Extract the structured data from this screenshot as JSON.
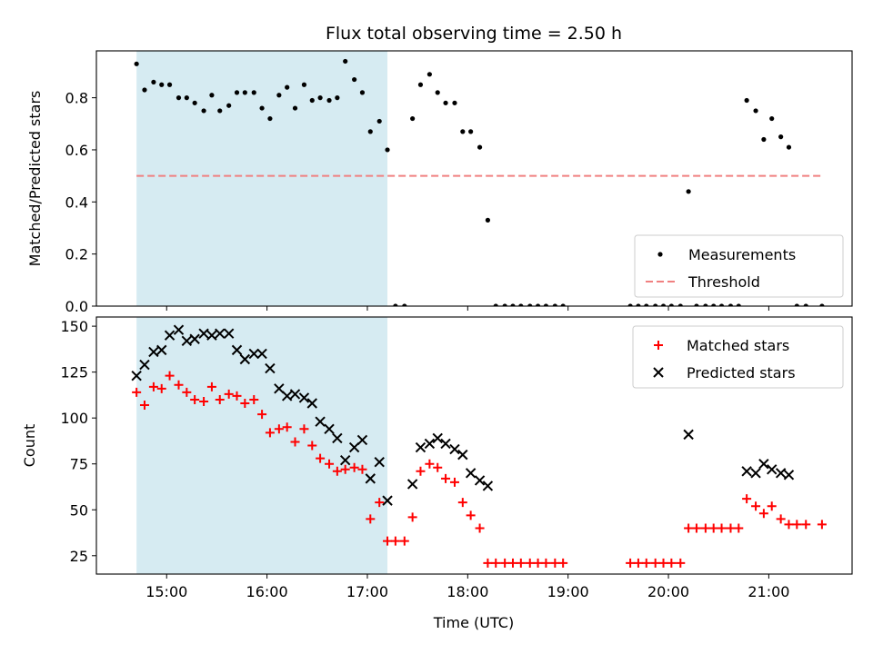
{
  "chart_data": {
    "title": "Flux total observing time = 2.50 h",
    "xlabel": "Time (UTC)",
    "x_ticks": [
      "15:00",
      "16:00",
      "17:00",
      "18:00",
      "19:00",
      "20:00",
      "21:00"
    ],
    "x_tick_hours": [
      15,
      16,
      17,
      18,
      19,
      20,
      21
    ],
    "xlim_hours": [
      14.3,
      21.83
    ],
    "shaded_interval_hours": [
      14.7,
      17.2
    ],
    "shade_color": "#add8e6",
    "panels": [
      {
        "type": "scatter",
        "ylabel": "Matched/Predicted stars",
        "ylim": [
          0,
          0.98
        ],
        "y_ticks": [
          0,
          0.2,
          0.4,
          0.6,
          0.8
        ],
        "y_tick_labels": [
          "0.0",
          "0.2",
          "0.4",
          "0.6",
          "0.8"
        ],
        "legend_position": "lower-right",
        "threshold": {
          "name": "Threshold",
          "value": 0.5,
          "x_range_hours": [
            14.7,
            21.53
          ],
          "color": "#f08080"
        },
        "series": [
          {
            "name": "Measurements",
            "color": "#000000",
            "marker": "dot",
            "x": [
              14.7,
              14.78,
              14.87,
              14.95,
              15.03,
              15.12,
              15.2,
              15.28,
              15.37,
              15.45,
              15.53,
              15.62,
              15.7,
              15.78,
              15.87,
              15.95,
              16.03,
              16.12,
              16.2,
              16.28,
              16.37,
              16.45,
              16.53,
              16.62,
              16.7,
              16.78,
              16.87,
              16.95,
              17.03,
              17.12,
              17.2,
              17.28,
              17.37,
              17.45,
              17.53,
              17.62,
              17.7,
              17.78,
              17.87,
              17.95,
              18.03,
              18.12,
              18.2,
              18.28,
              18.37,
              18.45,
              18.53,
              18.62,
              18.7,
              18.78,
              18.87,
              18.95,
              19.62,
              19.7,
              19.78,
              19.87,
              19.95,
              20.03,
              20.12,
              20.2,
              20.28,
              20.37,
              20.45,
              20.53,
              20.62,
              20.7,
              20.78,
              20.87,
              20.95,
              21.03,
              21.12,
              21.2,
              21.28,
              21.37,
              21.53
            ],
            "y": [
              0.93,
              0.83,
              0.86,
              0.85,
              0.85,
              0.8,
              0.8,
              0.78,
              0.75,
              0.81,
              0.75,
              0.77,
              0.82,
              0.82,
              0.82,
              0.76,
              0.72,
              0.81,
              0.84,
              0.76,
              0.85,
              0.79,
              0.8,
              0.79,
              0.8,
              0.94,
              0.87,
              0.82,
              0.67,
              0.71,
              0.6,
              0.0,
              0.0,
              0.72,
              0.85,
              0.89,
              0.82,
              0.78,
              0.78,
              0.67,
              0.67,
              0.61,
              0.33,
              0.0,
              0.0,
              0.0,
              0.0,
              0.0,
              0.0,
              0.0,
              0.0,
              0.0,
              0.0,
              0.0,
              0.0,
              0.0,
              0.0,
              0.0,
              0.0,
              0.44,
              0.0,
              0.0,
              0.0,
              0.0,
              0.0,
              0.0,
              0.79,
              0.75,
              0.64,
              0.72,
              0.65,
              0.61,
              0.0,
              0.0,
              0.0
            ]
          }
        ]
      },
      {
        "type": "scatter",
        "ylabel": "Count",
        "ylim": [
          15,
          155
        ],
        "y_ticks": [
          25,
          50,
          75,
          100,
          125,
          150
        ],
        "y_tick_labels": [
          "25",
          "50",
          "75",
          "100",
          "125",
          "150"
        ],
        "legend_position": "upper-right",
        "series": [
          {
            "name": "Matched stars",
            "color": "#ff0000",
            "marker": "plus",
            "x": [
              14.7,
              14.78,
              14.87,
              14.95,
              15.03,
              15.12,
              15.2,
              15.28,
              15.37,
              15.45,
              15.53,
              15.62,
              15.7,
              15.78,
              15.87,
              15.95,
              16.03,
              16.12,
              16.2,
              16.28,
              16.37,
              16.45,
              16.53,
              16.62,
              16.7,
              16.78,
              16.87,
              16.95,
              17.03,
              17.12,
              17.2,
              17.28,
              17.37,
              17.45,
              17.53,
              17.62,
              17.7,
              17.78,
              17.87,
              17.95,
              18.03,
              18.12,
              18.2,
              18.28,
              18.37,
              18.45,
              18.53,
              18.62,
              18.7,
              18.78,
              18.87,
              18.95,
              19.62,
              19.7,
              19.78,
              19.87,
              19.95,
              20.03,
              20.12,
              20.2,
              20.28,
              20.37,
              20.45,
              20.53,
              20.62,
              20.7,
              20.78,
              20.87,
              20.95,
              21.03,
              21.12,
              21.2,
              21.28,
              21.37,
              21.53
            ],
            "y": [
              114,
              107,
              117,
              116,
              123,
              118,
              114,
              110,
              109,
              117,
              110,
              113,
              112,
              108,
              110,
              102,
              92,
              94,
              95,
              87,
              94,
              85,
              78,
              75,
              71,
              72,
              73,
              72,
              45,
              54,
              33,
              33,
              33,
              46,
              71,
              75,
              73,
              67,
              65,
              54,
              47,
              40,
              21,
              21,
              21,
              21,
              21,
              21,
              21,
              21,
              21,
              21,
              21,
              21,
              21,
              21,
              21,
              21,
              21,
              40,
              40,
              40,
              40,
              40,
              40,
              40,
              56,
              52,
              48,
              52,
              45,
              42,
              42,
              42,
              42
            ]
          },
          {
            "name": "Predicted stars",
            "color": "#000000",
            "marker": "x",
            "x": [
              14.7,
              14.78,
              14.87,
              14.95,
              15.03,
              15.12,
              15.2,
              15.28,
              15.37,
              15.45,
              15.53,
              15.62,
              15.7,
              15.78,
              15.87,
              15.95,
              16.03,
              16.12,
              16.2,
              16.28,
              16.37,
              16.45,
              16.53,
              16.62,
              16.7,
              16.78,
              16.87,
              16.95,
              17.03,
              17.12,
              17.2,
              17.45,
              17.53,
              17.62,
              17.7,
              17.78,
              17.87,
              17.95,
              18.03,
              18.12,
              18.2,
              20.2,
              20.78,
              20.87,
              20.95,
              21.03,
              21.12,
              21.2
            ],
            "y": [
              123,
              129,
              136,
              137,
              145,
              148,
              142,
              143,
              146,
              145,
              146,
              146,
              137,
              132,
              135,
              135,
              127,
              116,
              112,
              113,
              111,
              108,
              98,
              94,
              89,
              77,
              84,
              88,
              67,
              76,
              55,
              64,
              84,
              86,
              89,
              86,
              83,
              80,
              70,
              66,
              63,
              91,
              71,
              70,
              75,
              72,
              70,
              69
            ]
          }
        ]
      }
    ]
  }
}
